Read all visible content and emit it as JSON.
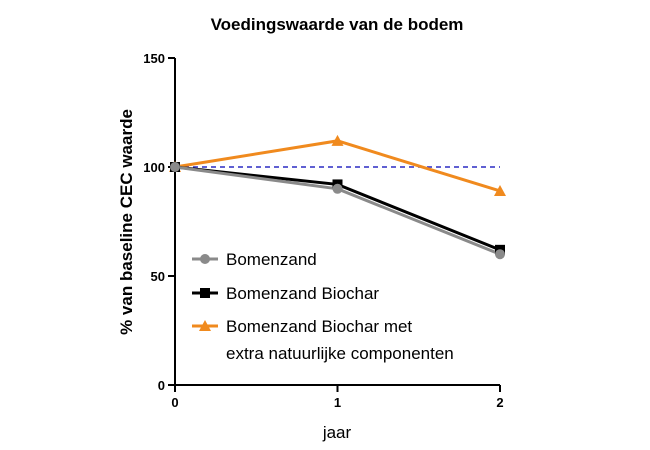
{
  "chart_data": {
    "type": "line",
    "title": "Voedingswaarde van de bodem",
    "xlabel": "jaar",
    "ylabel": "% van baseline CEC waarde",
    "x": [
      0,
      1,
      2
    ],
    "x_ticks": [
      "0",
      "1",
      "2"
    ],
    "y_ticks": [
      "0",
      "50",
      "100",
      "150"
    ],
    "xlim": [
      0,
      2
    ],
    "ylim": [
      0,
      150
    ],
    "grid": false,
    "legend_position": "bottom-left",
    "reference_line": {
      "y": 100,
      "style": "dashed",
      "color": "#2b2bc4"
    },
    "series": [
      {
        "name": "Bomenzand",
        "values": [
          100,
          90,
          60
        ],
        "color": "#8a8a8a",
        "marker": "circle"
      },
      {
        "name": "Bomenzand Biochar",
        "values": [
          100,
          92,
          62
        ],
        "color": "#000000",
        "marker": "square"
      },
      {
        "name": "Bomenzand Biochar met extra natuurlijke componenten",
        "legend_lines": [
          "Bomenzand Biochar met",
          "extra natuurlijke componenten"
        ],
        "values": [
          100,
          112,
          89
        ],
        "color": "#f08a1e",
        "marker": "triangle"
      }
    ]
  }
}
